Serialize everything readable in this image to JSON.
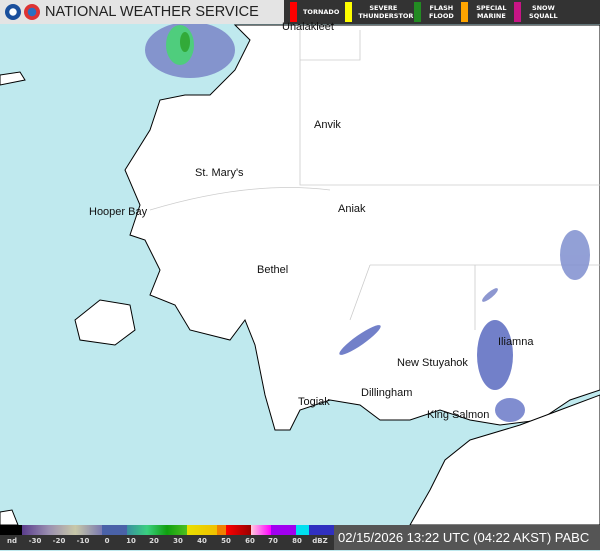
{
  "header": {
    "title": "NATIONAL WEATHER SERVICE",
    "logos": [
      "noaa-logo",
      "nws-logo"
    ]
  },
  "warnings": [
    {
      "label": "TORNADO",
      "color": "#ff0000"
    },
    {
      "label": "SEVERE THUNDERSTORM",
      "color": "#ffff00"
    },
    {
      "label": "FLASH FLOOD",
      "color": "#228b22"
    },
    {
      "label": "SPECIAL MARINE",
      "color": "#ffa500"
    },
    {
      "label": "SNOW SQUALL",
      "color": "#c71585"
    }
  ],
  "cities": [
    {
      "name": "Unalakleet"
    },
    {
      "name": "Anvik"
    },
    {
      "name": "St. Mary's"
    },
    {
      "name": "Hooper Bay"
    },
    {
      "name": "Aniak"
    },
    {
      "name": "Bethel"
    },
    {
      "name": "Iliamna"
    },
    {
      "name": "New Stuyahok"
    },
    {
      "name": "Dillingham"
    },
    {
      "name": "Togiak"
    },
    {
      "name": "King Salmon"
    }
  ],
  "legend": {
    "ticks": [
      "nd",
      "-30",
      "-20",
      "-10",
      "0",
      "10",
      "20",
      "30",
      "40",
      "50",
      "60",
      "70",
      "80",
      "dBZ"
    ]
  },
  "colors": {
    "water": "#bfe9ee",
    "land": "#ffffff"
  },
  "timestamp": "02/15/2026 13:22 UTC (04:22 AKST)  PABC"
}
